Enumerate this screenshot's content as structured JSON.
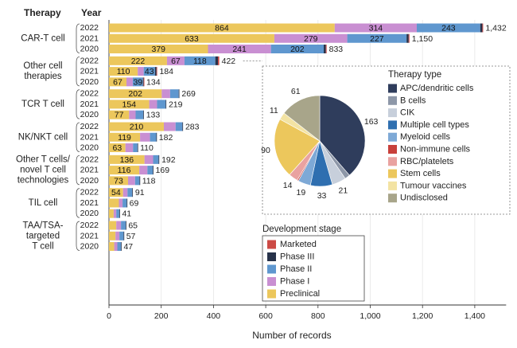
{
  "chart_data": {
    "type": "bar",
    "orientation": "horizontal",
    "stacked": true,
    "header_therapy": "Therapy",
    "header_year": "Year",
    "xlabel": "Number of records",
    "xlim": [
      0,
      1400
    ],
    "xticks": [
      0,
      200,
      400,
      600,
      800,
      1000,
      1200,
      1400
    ],
    "xtick_labels": [
      "0",
      "200",
      "400",
      "600",
      "800",
      "1,000",
      "1,200",
      "1,400"
    ],
    "stage_order": [
      "Preclinical",
      "Phase I",
      "Phase II",
      "Phase III",
      "Marketed"
    ],
    "stage_colors": {
      "Preclinical": "#ecc75c",
      "Phase I": "#c98fd2",
      "Phase II": "#5f97cf",
      "Phase III": "#27324a",
      "Marketed": "#cc4a45"
    },
    "groups": [
      {
        "name": "CAR-T cell",
        "years": [
          {
            "year": "2022",
            "total_label": "1,432",
            "total": 1432,
            "values": {
              "Preclinical": 864,
              "Phase I": 314,
              "Phase II": 243,
              "Phase III": 8,
              "Marketed": 3
            },
            "labels": {
              "Preclinical": "864",
              "Phase I": "314",
              "Phase II": "243"
            }
          },
          {
            "year": "2021",
            "total_label": "1,150",
            "total": 1150,
            "values": {
              "Preclinical": 633,
              "Phase I": 279,
              "Phase II": 227,
              "Phase III": 8,
              "Marketed": 3
            },
            "labels": {
              "Preclinical": "633",
              "Phase I": "279",
              "Phase II": "227"
            }
          },
          {
            "year": "2020",
            "total_label": "833",
            "total": 833,
            "values": {
              "Preclinical": 379,
              "Phase I": 241,
              "Phase II": 202,
              "Phase III": 8,
              "Marketed": 3
            },
            "labels": {
              "Preclinical": "379",
              "Phase I": "241",
              "Phase II": "202"
            }
          }
        ]
      },
      {
        "name": "Other cell therapies",
        "name_lines": [
          "Other cell",
          "therapies"
        ],
        "years": [
          {
            "year": "2022",
            "total_label": "422",
            "total": 422,
            "values": {
              "Preclinical": 222,
              "Phase I": 67,
              "Phase II": 118,
              "Phase III": 10,
              "Marketed": 5
            },
            "labels": {
              "Preclinical": "222",
              "Phase I": "67",
              "Phase II": "118"
            }
          },
          {
            "year": "2021",
            "total_label": "184",
            "total": 184,
            "values": {
              "Preclinical": 110,
              "Phase I": 23,
              "Phase II": 43,
              "Phase III": 6,
              "Marketed": 2
            },
            "labels": {
              "Preclinical": "110",
              "Phase II": "43"
            }
          },
          {
            "year": "2020",
            "total_label": "134",
            "total": 134,
            "values": {
              "Preclinical": 67,
              "Phase I": 24,
              "Phase II": 39,
              "Phase III": 3,
              "Marketed": 1
            },
            "labels": {
              "Preclinical": "67",
              "Phase II": "39"
            }
          }
        ]
      },
      {
        "name": "TCR T cell",
        "years": [
          {
            "year": "2022",
            "total_label": "269",
            "total": 269,
            "values": {
              "Preclinical": 202,
              "Phase I": 32,
              "Phase II": 33,
              "Phase III": 2,
              "Marketed": 0
            },
            "labels": {
              "Preclinical": "202"
            }
          },
          {
            "year": "2021",
            "total_label": "219",
            "total": 219,
            "values": {
              "Preclinical": 154,
              "Phase I": 30,
              "Phase II": 33,
              "Phase III": 2,
              "Marketed": 0
            },
            "labels": {
              "Preclinical": "154"
            }
          },
          {
            "year": "2020",
            "total_label": "133",
            "total": 133,
            "values": {
              "Preclinical": 77,
              "Phase I": 25,
              "Phase II": 29,
              "Phase III": 2,
              "Marketed": 0
            },
            "labels": {
              "Preclinical": "77"
            }
          }
        ]
      },
      {
        "name": "NK/NKT cell",
        "years": [
          {
            "year": "2022",
            "total_label": "283",
            "total": 283,
            "values": {
              "Preclinical": 210,
              "Phase I": 45,
              "Phase II": 26,
              "Phase III": 2,
              "Marketed": 0
            },
            "labels": {
              "Preclinical": "210"
            }
          },
          {
            "year": "2021",
            "total_label": "182",
            "total": 182,
            "values": {
              "Preclinical": 119,
              "Phase I": 38,
              "Phase II": 24,
              "Phase III": 1,
              "Marketed": 0
            },
            "labels": {
              "Preclinical": "119"
            }
          },
          {
            "year": "2020",
            "total_label": "110",
            "total": 110,
            "values": {
              "Preclinical": 63,
              "Phase I": 29,
              "Phase II": 17,
              "Phase III": 1,
              "Marketed": 0
            },
            "labels": {
              "Preclinical": "63"
            }
          }
        ]
      },
      {
        "name": "Other T cells/ novel T cell technologies",
        "name_lines": [
          "Other T cells/",
          "novel T cell",
          "technologies"
        ],
        "years": [
          {
            "year": "2022",
            "total_label": "192",
            "total": 192,
            "values": {
              "Preclinical": 136,
              "Phase I": 33,
              "Phase II": 21,
              "Phase III": 2,
              "Marketed": 0
            },
            "labels": {
              "Preclinical": "136"
            }
          },
          {
            "year": "2021",
            "total_label": "169",
            "total": 169,
            "values": {
              "Preclinical": 116,
              "Phase I": 31,
              "Phase II": 21,
              "Phase III": 1,
              "Marketed": 0
            },
            "labels": {
              "Preclinical": "116"
            }
          },
          {
            "year": "2020",
            "total_label": "118",
            "total": 118,
            "values": {
              "Preclinical": 73,
              "Phase I": 27,
              "Phase II": 17,
              "Phase III": 1,
              "Marketed": 0
            },
            "labels": {
              "Preclinical": "73"
            }
          }
        ]
      },
      {
        "name": "TIL cell",
        "years": [
          {
            "year": "2022",
            "total_label": "91",
            "total": 91,
            "values": {
              "Preclinical": 54,
              "Phase I": 17,
              "Phase II": 18,
              "Phase III": 2,
              "Marketed": 0
            },
            "labels": {
              "Preclinical": "54"
            }
          },
          {
            "year": "2021",
            "total_label": "69",
            "total": 69,
            "values": {
              "Preclinical": 38,
              "Phase I": 14,
              "Phase II": 16,
              "Phase III": 1,
              "Marketed": 0
            },
            "labels": {}
          },
          {
            "year": "2020",
            "total_label": "41",
            "total": 41,
            "values": {
              "Preclinical": 18,
              "Phase I": 10,
              "Phase II": 12,
              "Phase III": 1,
              "Marketed": 0
            },
            "labels": {}
          }
        ]
      },
      {
        "name": "TAA/TSA-targeted T cell",
        "name_lines": [
          "TAA/TSA-",
          "targeted",
          "T cell"
        ],
        "years": [
          {
            "year": "2022",
            "total_label": "65",
            "total": 65,
            "values": {
              "Preclinical": 28,
              "Phase I": 18,
              "Phase II": 18,
              "Phase III": 1,
              "Marketed": 0
            },
            "labels": {}
          },
          {
            "year": "2021",
            "total_label": "57",
            "total": 57,
            "values": {
              "Preclinical": 25,
              "Phase I": 15,
              "Phase II": 16,
              "Phase III": 1,
              "Marketed": 0
            },
            "labels": {}
          },
          {
            "year": "2020",
            "total_label": "47",
            "total": 47,
            "values": {
              "Preclinical": 20,
              "Phase I": 12,
              "Phase II": 14,
              "Phase III": 1,
              "Marketed": 0
            },
            "labels": {}
          }
        ]
      }
    ],
    "stage_legend": {
      "title": "Development stage",
      "items": [
        {
          "name": "Marketed",
          "color": "#cc4a45"
        },
        {
          "name": "Phase III",
          "color": "#27324a"
        },
        {
          "name": "Phase II",
          "color": "#5f97cf"
        },
        {
          "name": "Phase I",
          "color": "#c98fd2"
        },
        {
          "name": "Preclinical",
          "color": "#ecc75c"
        }
      ]
    },
    "pie": {
      "type": "pie",
      "callout_for": "Other cell therapies 2022",
      "legend_title": "Therapy type",
      "slices": [
        {
          "name": "APC/dendritic cells",
          "value": 163,
          "color": "#2f3d5c",
          "label": "163"
        },
        {
          "name": "B cells",
          "value": 8,
          "color": "#8d97a8"
        },
        {
          "name": "CIK",
          "value": 21,
          "color": "#c7cfdb",
          "label": "21"
        },
        {
          "name": "Multiple cell types",
          "value": 33,
          "color": "#2f6fb0",
          "label": "33"
        },
        {
          "name": "Myeloid cells",
          "value": 19,
          "color": "#7ea9d6",
          "label": "19"
        },
        {
          "name": "Non-immune cells",
          "value": 2,
          "color": "#c8403b"
        },
        {
          "name": "RBC/platelets",
          "value": 14,
          "color": "#e9a2a0",
          "label": "14"
        },
        {
          "name": "Stem cells",
          "value": 90,
          "color": "#ecc75c",
          "label": "90"
        },
        {
          "name": "Tumour vaccines",
          "value": 11,
          "color": "#f3e3a3",
          "label": "11"
        },
        {
          "name": "Undisclosed",
          "value": 61,
          "color": "#a8a58a",
          "label": "61"
        }
      ]
    }
  }
}
